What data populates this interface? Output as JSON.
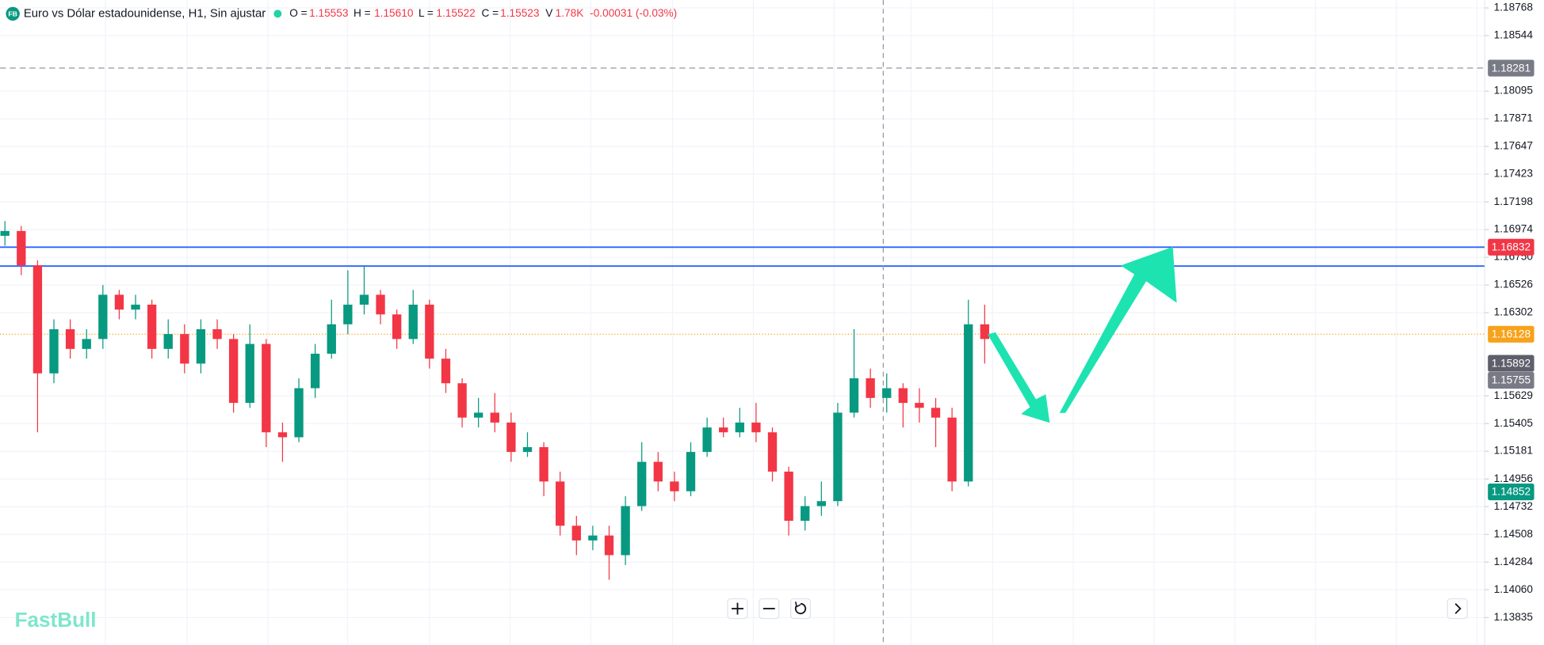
{
  "header": {
    "logo": "FB",
    "title": "Euro vs Dólar estadounidense, H1, Sin ajustar",
    "ohlc": [
      {
        "label": "O =",
        "value": "1.15553"
      },
      {
        "label": "H =",
        "value": "1.15610"
      },
      {
        "label": "L =",
        "value": "1.15522"
      },
      {
        "label": "C =",
        "value": "1.15523"
      }
    ],
    "volume_label": "V",
    "volume": "1.78K",
    "change": "-0.00031 (-0.03%)"
  },
  "chart_data": {
    "type": "candlestick",
    "open": [
      1.16924,
      1.16963,
      1.16685,
      1.15811,
      1.16168,
      1.16009,
      1.16089,
      1.16447,
      1.16327,
      1.16367,
      1.16009,
      1.16129,
      1.1589,
      1.16168,
      1.16089,
      1.15572,
      1.16049,
      1.15334,
      1.15294,
      1.15691,
      1.1597,
      1.16208,
      1.16367,
      1.16447,
      1.16288,
      1.16089,
      1.16367,
      1.1593,
      1.15731,
      1.15453,
      1.15493,
      1.15413,
      1.15175,
      1.15214,
      1.14936,
      1.14578,
      1.14459,
      1.14499,
      1.1434,
      1.14737,
      1.15095,
      1.14936,
      1.14857,
      1.15175,
      1.15373,
      1.15334,
      1.15413,
      1.15334,
      1.15016,
      1.14618,
      1.14737,
      1.14777,
      1.15493,
      1.15771,
      1.15612,
      1.15691,
      1.15572,
      1.15532,
      1.15453,
      1.14936,
      1.16208
    ],
    "high": [
      1.17043,
      1.17003,
      1.16725,
      1.16248,
      1.16248,
      1.16168,
      1.16526,
      1.16486,
      1.16447,
      1.16407,
      1.16248,
      1.16208,
      1.16248,
      1.16248,
      1.16129,
      1.16208,
      1.16089,
      1.15413,
      1.15771,
      1.16049,
      1.16407,
      1.16645,
      1.16685,
      1.16486,
      1.16327,
      1.16486,
      1.16407,
      1.16009,
      1.15771,
      1.15612,
      1.15652,
      1.15493,
      1.15334,
      1.15254,
      1.15016,
      1.14658,
      1.14578,
      1.14578,
      1.14817,
      1.15254,
      1.15175,
      1.15016,
      1.15254,
      1.15453,
      1.15453,
      1.15532,
      1.15572,
      1.15373,
      1.15055,
      1.14817,
      1.14936,
      1.15572,
      1.16168,
      1.1585,
      1.15811,
      1.15731,
      1.15691,
      1.15612,
      1.15532,
      1.16407,
      1.16367
    ],
    "low": [
      1.16844,
      1.16606,
      1.15334,
      1.15731,
      1.1593,
      1.1593,
      1.16009,
      1.16248,
      1.16248,
      1.1593,
      1.1593,
      1.15811,
      1.15811,
      1.16009,
      1.15493,
      1.15532,
      1.15214,
      1.15095,
      1.15254,
      1.15612,
      1.1593,
      1.16129,
      1.16288,
      1.16208,
      1.16009,
      1.16049,
      1.1585,
      1.15652,
      1.15373,
      1.15373,
      1.15334,
      1.15095,
      1.15135,
      1.14817,
      1.14499,
      1.1434,
      1.1438,
      1.14141,
      1.1426,
      1.14698,
      1.14857,
      1.14777,
      1.14817,
      1.15135,
      1.15294,
      1.15294,
      1.15254,
      1.14936,
      1.14499,
      1.14539,
      1.14658,
      1.14737,
      1.15453,
      1.15532,
      1.15493,
      1.15373,
      1.15413,
      1.15214,
      1.14857,
      1.14896,
      1.1589
    ],
    "close": [
      1.16963,
      1.16685,
      1.15811,
      1.16168,
      1.16009,
      1.16089,
      1.16447,
      1.16327,
      1.16367,
      1.16009,
      1.16129,
      1.1589,
      1.16168,
      1.16089,
      1.15572,
      1.16049,
      1.15334,
      1.15294,
      1.15691,
      1.1597,
      1.16208,
      1.16367,
      1.16447,
      1.16288,
      1.16089,
      1.16367,
      1.1593,
      1.15731,
      1.15453,
      1.15493,
      1.15413,
      1.15175,
      1.15214,
      1.14936,
      1.14578,
      1.14459,
      1.14499,
      1.1434,
      1.14737,
      1.15095,
      1.14936,
      1.14857,
      1.15175,
      1.15373,
      1.15334,
      1.15413,
      1.15334,
      1.15016,
      1.14618,
      1.14737,
      1.14777,
      1.15493,
      1.15771,
      1.15612,
      1.15691,
      1.15572,
      1.15532,
      1.15453,
      1.14936,
      1.16208,
      1.16089
    ],
    "up_color": "#089981",
    "down_color": "#f23645",
    "ylim": [
      1.13613,
      1.18832
    ],
    "yticks": [
      1.18768,
      1.18544,
      1.18095,
      1.17871,
      1.17647,
      1.17423,
      1.17198,
      1.16974,
      {
        "value": 1.1675,
        "label": "1.16750"
      },
      1.16526,
      1.16302,
      1.15629,
      1.15405,
      1.15181,
      1.14956,
      1.14732,
      1.14508,
      1.14284,
      {
        "value": 1.1406,
        "label": "1.14060"
      },
      1.13835
    ],
    "grid": true,
    "lines": [
      {
        "value": 1.16679,
        "color": "#2962ff"
      }
    ],
    "price_markers": [
      {
        "value": 1.18281,
        "color": "#787b86",
        "line": "dashed",
        "line_color": "#9598a1"
      },
      {
        "value": 1.16832,
        "color": "#f23645",
        "line": "solid",
        "line_color": "#2962ff"
      },
      {
        "value": 1.16128,
        "color": "#f7a21b",
        "line": "dotted",
        "line_color": "#f7a21b"
      },
      {
        "value": 1.15892,
        "color": "#5d606b"
      },
      {
        "value": 1.15755,
        "color": "#787b86"
      },
      {
        "value": 1.14852,
        "color": "#089981"
      }
    ]
  },
  "watermark": "FastBull"
}
